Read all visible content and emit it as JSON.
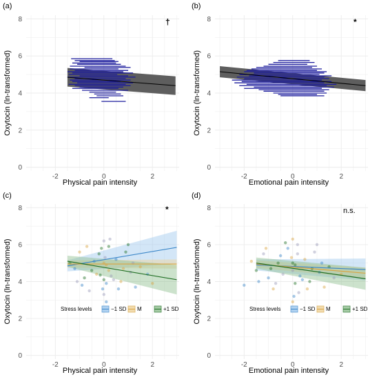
{
  "chart_data": [
    {
      "type": "scatter",
      "panel_label": "(a)",
      "xlabel": "Physical pain intensity",
      "ylabel": "Oxytocin (ln-transformed)",
      "xlim": [
        -3.2,
        3.1
      ],
      "ylim": [
        -0.2,
        8.2
      ],
      "x_ticks": [
        -2,
        0,
        2
      ],
      "y_ticks": [
        0,
        2,
        4,
        6,
        8
      ],
      "significance": "†",
      "regression": {
        "x": [
          -1.5,
          2.95
        ],
        "y": [
          4.85,
          4.4
        ],
        "band": 0.5,
        "color": "#000000",
        "band_color": "#555555"
      },
      "segments_color": "#1a1a9c",
      "segments": [
        [
          -1.35,
          0.35,
          5.85
        ],
        [
          -1.2,
          0.45,
          5.75
        ],
        [
          -1.0,
          0.6,
          5.7
        ],
        [
          -1.3,
          0.5,
          5.62
        ],
        [
          -1.1,
          0.7,
          5.55
        ],
        [
          -1.4,
          0.9,
          5.45
        ],
        [
          -0.8,
          1.1,
          5.38
        ],
        [
          -1.4,
          0.6,
          5.3
        ],
        [
          -1.2,
          1.0,
          5.22
        ],
        [
          -1.5,
          0.8,
          5.15
        ],
        [
          -1.3,
          1.2,
          5.08
        ],
        [
          -1.45,
          0.55,
          5.0
        ],
        [
          -1.0,
          1.0,
          4.93
        ],
        [
          -1.5,
          1.3,
          4.86
        ],
        [
          -1.2,
          0.9,
          4.78
        ],
        [
          -1.4,
          1.1,
          4.7
        ],
        [
          -1.3,
          0.7,
          4.62
        ],
        [
          -1.1,
          1.2,
          4.55
        ],
        [
          -1.45,
          0.9,
          4.47
        ],
        [
          -1.2,
          1.1,
          4.4
        ],
        [
          -1.0,
          0.8,
          4.32
        ],
        [
          -1.3,
          0.6,
          4.25
        ],
        [
          -0.9,
          1.0,
          4.15
        ],
        [
          -0.6,
          0.5,
          4.05
        ],
        [
          -0.4,
          0.7,
          3.95
        ],
        [
          -0.3,
          0.8,
          3.85
        ],
        [
          -0.6,
          0.2,
          3.75
        ],
        [
          -0.1,
          0.9,
          3.55
        ]
      ]
    },
    {
      "type": "scatter",
      "panel_label": "(b)",
      "xlabel": "Emotional pain intensity",
      "ylabel": "Oxytocin (ln-transformed)",
      "xlim": [
        -3.2,
        3.1
      ],
      "ylim": [
        -0.2,
        8.2
      ],
      "x_ticks": [
        -2,
        0,
        2
      ],
      "y_ticks": [
        0,
        2,
        4,
        6,
        8
      ],
      "significance": "*",
      "regression": {
        "x": [
          -3.0,
          3.0
        ],
        "y": [
          5.15,
          4.4
        ],
        "band": 0.3,
        "color": "#000000",
        "band_color": "#555555"
      },
      "segments_color": "#1a1a9c",
      "segments": [
        [
          -0.6,
          0.7,
          5.75
        ],
        [
          -0.8,
          0.9,
          5.65
        ],
        [
          -1.0,
          0.6,
          5.55
        ],
        [
          -1.2,
          1.0,
          5.45
        ],
        [
          -1.5,
          0.8,
          5.38
        ],
        [
          -1.7,
          1.2,
          5.3
        ],
        [
          -1.9,
          1.0,
          5.22
        ],
        [
          -2.0,
          1.4,
          5.15
        ],
        [
          -1.6,
          1.3,
          5.08
        ],
        [
          -2.2,
          1.1,
          5.0
        ],
        [
          -1.8,
          1.6,
          4.93
        ],
        [
          -2.3,
          1.3,
          4.86
        ],
        [
          -2.0,
          1.5,
          4.78
        ],
        [
          -2.5,
          1.2,
          4.7
        ],
        [
          -2.1,
          1.6,
          4.62
        ],
        [
          -2.4,
          1.3,
          4.55
        ],
        [
          -1.9,
          1.8,
          4.47
        ],
        [
          -2.2,
          1.4,
          4.4
        ],
        [
          -1.6,
          1.7,
          4.32
        ],
        [
          -2.0,
          1.2,
          4.25
        ],
        [
          -1.4,
          1.5,
          4.18
        ],
        [
          -1.2,
          1.3,
          4.1
        ],
        [
          -0.8,
          1.4,
          4.0
        ],
        [
          -0.6,
          1.0,
          3.92
        ],
        [
          -0.5,
          1.3,
          3.85
        ]
      ]
    },
    {
      "type": "scatter",
      "panel_label": "(c)",
      "xlabel": "Physical pain intensity",
      "ylabel": "Oxytocin (ln-transformed)",
      "xlim": [
        -3.2,
        3.1
      ],
      "ylim": [
        -0.2,
        8.2
      ],
      "x_ticks": [
        -2,
        0,
        2
      ],
      "y_ticks": [
        0,
        2,
        4,
        6,
        8
      ],
      "significance": "*",
      "legend": {
        "title": "Stress levels",
        "entries": [
          "−1 SD",
          "M",
          "+1 SD"
        ],
        "placement": "bottom"
      },
      "series": [
        {
          "name": "−1 SD",
          "color": "#3a86c8",
          "fill": "#9ec8ee",
          "x": [
            -1.5,
            3.0
          ],
          "y": [
            4.85,
            5.85
          ],
          "band": [
            0.3,
            0.9
          ]
        },
        {
          "name": "M",
          "color": "#d9a441",
          "fill": "#eed39a",
          "x": [
            -1.5,
            3.0
          ],
          "y": [
            4.95,
            4.95
          ],
          "band": [
            0.2,
            0.25
          ]
        },
        {
          "name": "+1 SD",
          "color": "#1f6e23",
          "fill": "#8fbf8f",
          "x": [
            -1.5,
            3.0
          ],
          "y": [
            5.1,
            4.1
          ],
          "band": [
            0.3,
            0.8
          ]
        }
      ],
      "points": [
        [
          -1.2,
          4.7
        ],
        [
          -1.0,
          5.6
        ],
        [
          -0.8,
          4.2
        ],
        [
          -0.6,
          3.5
        ],
        [
          -0.4,
          5.1
        ],
        [
          -0.3,
          4.4
        ],
        [
          -0.1,
          5.8
        ],
        [
          0.0,
          6.2
        ],
        [
          0.1,
          3.9
        ],
        [
          0.2,
          4.6
        ],
        [
          0.0,
          4.1
        ],
        [
          0.05,
          5.3
        ],
        [
          -0.05,
          3.6
        ],
        [
          0.1,
          4.9
        ],
        [
          -0.2,
          5.5
        ],
        [
          0.3,
          4.3
        ],
        [
          0.5,
          5.2
        ],
        [
          0.7,
          4.0
        ],
        [
          0.9,
          5.6
        ],
        [
          1.1,
          4.5
        ],
        [
          1.3,
          3.7
        ],
        [
          1.5,
          4.8
        ],
        [
          -1.4,
          5.0
        ],
        [
          -1.1,
          4.0
        ],
        [
          -0.9,
          3.8
        ],
        [
          -0.7,
          5.9
        ],
        [
          -0.5,
          4.6
        ],
        [
          0.0,
          3.3
        ],
        [
          0.1,
          2.9
        ],
        [
          0.0,
          5.0
        ],
        [
          0.2,
          5.9
        ],
        [
          0.4,
          4.1
        ],
        [
          0.6,
          3.6
        ],
        [
          0.8,
          4.7
        ],
        [
          1.0,
          6.0
        ],
        [
          1.2,
          5.0
        ],
        [
          1.8,
          4.4
        ],
        [
          2.0,
          3.9
        ],
        [
          -0.15,
          4.35
        ],
        [
          0.25,
          6.3
        ]
      ],
      "point_colors": [
        "#3a86c8",
        "#d9a441",
        "#1f6e23",
        "#9a9ab8"
      ]
    },
    {
      "type": "scatter",
      "panel_label": "(d)",
      "xlabel": "Emotional pain intensity",
      "ylabel": "Oxytocin (ln-transformed)",
      "xlim": [
        -3.2,
        3.1
      ],
      "ylim": [
        -0.2,
        8.2
      ],
      "x_ticks": [
        -2,
        0,
        2
      ],
      "y_ticks": [
        0,
        2,
        4,
        6,
        8
      ],
      "significance": "n.s.",
      "legend": {
        "title": "Stress levels",
        "entries": [
          "−1 SD",
          "M",
          "+1 SD"
        ],
        "placement": "bottom"
      },
      "series": [
        {
          "name": "−1 SD",
          "color": "#3a86c8",
          "fill": "#9ec8ee",
          "x": [
            -1.5,
            3.0
          ],
          "y": [
            4.9,
            4.65
          ],
          "band": [
            0.3,
            0.6
          ]
        },
        {
          "name": "M",
          "color": "#d9a441",
          "fill": "#eed39a",
          "x": [
            -1.5,
            3.0
          ],
          "y": [
            4.95,
            4.45
          ],
          "band": [
            0.2,
            0.3
          ]
        },
        {
          "name": "+1 SD",
          "color": "#1f6e23",
          "fill": "#8fbf8f",
          "x": [
            -1.5,
            3.0
          ],
          "y": [
            5.0,
            4.15
          ],
          "band": [
            0.3,
            0.6
          ]
        }
      ],
      "points": [
        [
          -2.0,
          3.8
        ],
        [
          -1.7,
          5.1
        ],
        [
          -1.5,
          4.6
        ],
        [
          -1.2,
          5.5
        ],
        [
          -1.0,
          4.2
        ],
        [
          -0.8,
          3.6
        ],
        [
          -0.6,
          5.0
        ],
        [
          -0.4,
          4.4
        ],
        [
          -0.2,
          5.8
        ],
        [
          0.0,
          6.3
        ],
        [
          0.1,
          3.9
        ],
        [
          0.0,
          4.6
        ],
        [
          0.05,
          3.2
        ],
        [
          -0.05,
          5.3
        ],
        [
          0.1,
          4.9
        ],
        [
          0.2,
          5.5
        ],
        [
          0.3,
          4.3
        ],
        [
          0.5,
          5.2
        ],
        [
          0.7,
          4.0
        ],
        [
          0.9,
          5.6
        ],
        [
          1.1,
          4.5
        ],
        [
          1.3,
          3.7
        ],
        [
          1.5,
          4.8
        ],
        [
          1.7,
          4.2
        ],
        [
          -1.4,
          4.0
        ],
        [
          -1.1,
          5.8
        ],
        [
          -0.9,
          4.7
        ],
        [
          -0.7,
          3.9
        ],
        [
          -0.5,
          5.4
        ],
        [
          0.0,
          2.9
        ],
        [
          0.0,
          5.0
        ],
        [
          0.2,
          6.0
        ],
        [
          0.4,
          4.1
        ],
        [
          0.6,
          3.6
        ],
        [
          0.8,
          4.7
        ],
        [
          1.0,
          6.0
        ],
        [
          1.2,
          5.0
        ],
        [
          2.0,
          4.4
        ],
        [
          -0.3,
          6.1
        ],
        [
          0.25,
          3.4
        ]
      ],
      "point_colors": [
        "#3a86c8",
        "#d9a441",
        "#1f6e23",
        "#9a9ab8"
      ]
    }
  ]
}
